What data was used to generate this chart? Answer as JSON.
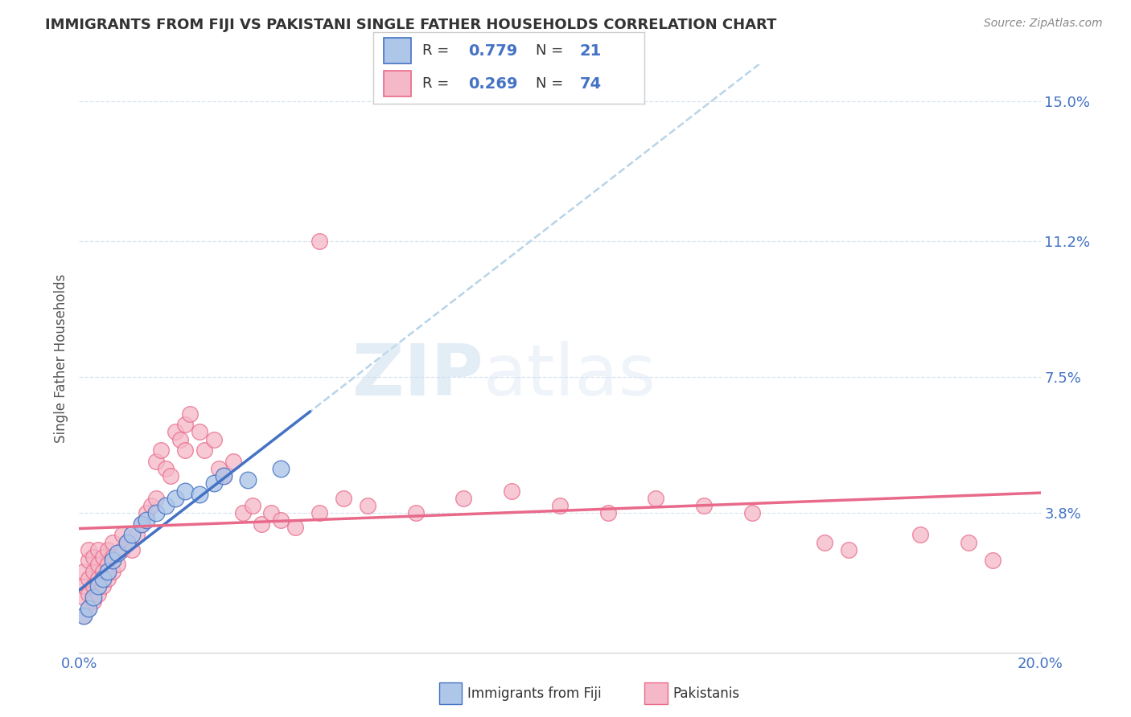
{
  "title": "IMMIGRANTS FROM FIJI VS PAKISTANI SINGLE FATHER HOUSEHOLDS CORRELATION CHART",
  "source": "Source: ZipAtlas.com",
  "ylabel": "Single Father Households",
  "watermark_zip": "ZIP",
  "watermark_atlas": "atlas",
  "xmin": 0.0,
  "xmax": 0.2,
  "ymin": 0.0,
  "ymax": 0.16,
  "yticks": [
    0.038,
    0.075,
    0.112,
    0.15
  ],
  "ytick_labels": [
    "3.8%",
    "7.5%",
    "11.2%",
    "15.0%"
  ],
  "xticks": [
    0.0,
    0.05,
    0.1,
    0.15,
    0.2
  ],
  "xtick_labels": [
    "0.0%",
    "",
    "",
    "",
    "20.0%"
  ],
  "fiji_R": "0.779",
  "fiji_N": "21",
  "pak_R": "0.269",
  "pak_N": "74",
  "fiji_fill_color": "#aec6e8",
  "fiji_edge_color": "#4472c4",
  "pak_fill_color": "#f5b8c8",
  "pak_edge_color": "#e8698a",
  "fiji_trend_color": "#4472c4",
  "pak_trend_color": "#e8698a",
  "dash_color": "#b8d4e8",
  "grid_color": "#d8e4f0",
  "bg_color": "#ffffff",
  "title_color": "#333333",
  "right_tick_color": "#4472c4",
  "legend_border_color": "#cccccc",
  "fiji_points_x": [
    0.001,
    0.002,
    0.003,
    0.004,
    0.005,
    0.006,
    0.007,
    0.008,
    0.01,
    0.011,
    0.013,
    0.014,
    0.016,
    0.018,
    0.02,
    0.022,
    0.025,
    0.028,
    0.03,
    0.035,
    0.042
  ],
  "fiji_points_y": [
    0.01,
    0.012,
    0.015,
    0.018,
    0.02,
    0.022,
    0.025,
    0.027,
    0.03,
    0.032,
    0.035,
    0.036,
    0.038,
    0.04,
    0.042,
    0.044,
    0.043,
    0.046,
    0.048,
    0.047,
    0.05
  ],
  "pak_points_x": [
    0.001,
    0.001,
    0.001,
    0.001,
    0.002,
    0.002,
    0.002,
    0.002,
    0.002,
    0.003,
    0.003,
    0.003,
    0.003,
    0.004,
    0.004,
    0.004,
    0.004,
    0.005,
    0.005,
    0.005,
    0.006,
    0.006,
    0.006,
    0.007,
    0.007,
    0.007,
    0.008,
    0.009,
    0.009,
    0.01,
    0.011,
    0.012,
    0.013,
    0.014,
    0.015,
    0.016,
    0.016,
    0.017,
    0.018,
    0.019,
    0.02,
    0.021,
    0.022,
    0.022,
    0.023,
    0.025,
    0.026,
    0.028,
    0.029,
    0.03,
    0.032,
    0.034,
    0.036,
    0.038,
    0.04,
    0.042,
    0.045,
    0.05,
    0.055,
    0.06,
    0.07,
    0.08,
    0.09,
    0.1,
    0.11,
    0.12,
    0.13,
    0.14,
    0.155,
    0.16,
    0.175,
    0.185,
    0.19,
    0.05
  ],
  "pak_points_y": [
    0.01,
    0.015,
    0.018,
    0.022,
    0.012,
    0.016,
    0.02,
    0.025,
    0.028,
    0.014,
    0.018,
    0.022,
    0.026,
    0.016,
    0.02,
    0.024,
    0.028,
    0.018,
    0.022,
    0.026,
    0.02,
    0.024,
    0.028,
    0.022,
    0.026,
    0.03,
    0.024,
    0.028,
    0.032,
    0.03,
    0.028,
    0.032,
    0.035,
    0.038,
    0.04,
    0.042,
    0.052,
    0.055,
    0.05,
    0.048,
    0.06,
    0.058,
    0.062,
    0.055,
    0.065,
    0.06,
    0.055,
    0.058,
    0.05,
    0.048,
    0.052,
    0.038,
    0.04,
    0.035,
    0.038,
    0.036,
    0.034,
    0.038,
    0.042,
    0.04,
    0.038,
    0.042,
    0.044,
    0.04,
    0.038,
    0.042,
    0.04,
    0.038,
    0.03,
    0.028,
    0.032,
    0.03,
    0.025,
    0.112
  ]
}
